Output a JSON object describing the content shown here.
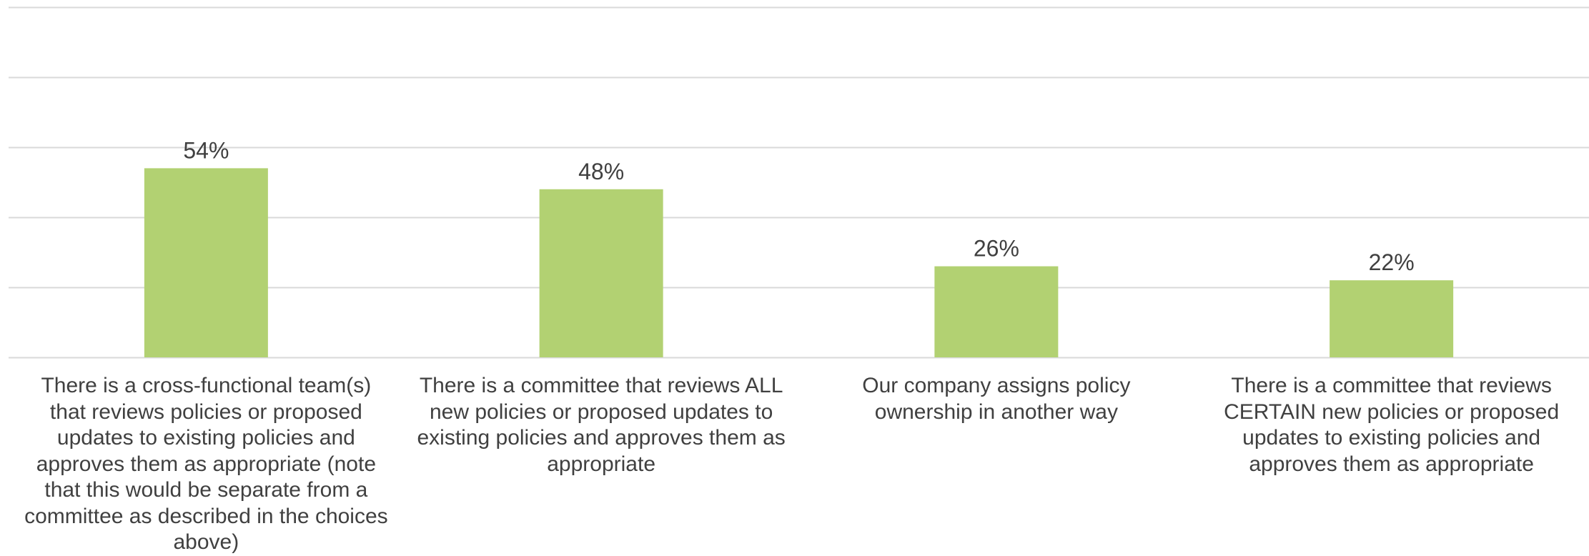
{
  "chart_data": {
    "type": "bar",
    "title": "",
    "xlabel": "",
    "ylabel": "",
    "ylim": [
      0,
      100
    ],
    "grid": true,
    "legend": "none",
    "bar_color": "#B2D172",
    "gridline_color": "#D9D9D9",
    "text_color": "#404040",
    "categories": [
      "There is a cross-functional team(s)\nthat reviews policies or proposed\nupdates to existing policies and\napproves them as appropriate (note\nthat this would be separate from a\ncommittee as described in the choices\nabove)",
      "There is a committee that reviews ALL\nnew policies or proposed updates to\nexisting policies and approves them as\nappropriate",
      "Our company assigns policy\nownership in another way",
      "There is a committee that reviews\nCERTAIN new policies or proposed\nupdates to existing policies and\napproves them as appropriate"
    ],
    "values": [
      54,
      48,
      26,
      22
    ],
    "data_labels": [
      "54%",
      "48%",
      "26%",
      "22%"
    ]
  }
}
